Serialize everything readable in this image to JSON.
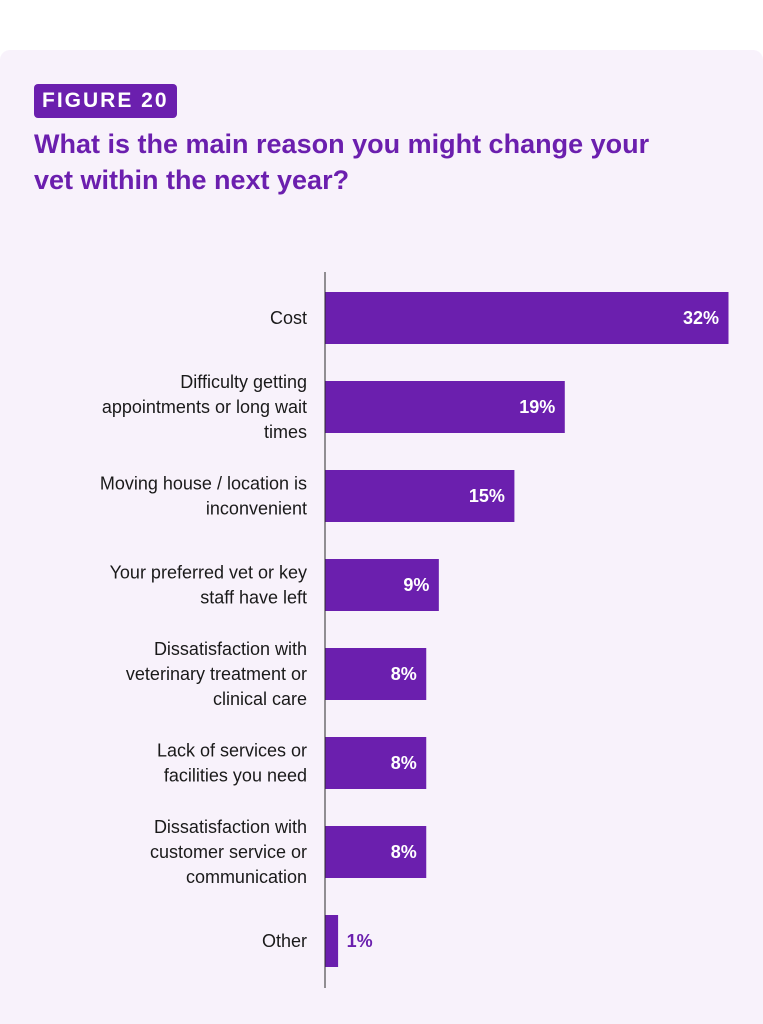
{
  "figure": {
    "badge": "FIGURE 20",
    "title": "What is the main reason you might change your vet within the next year?"
  },
  "colors": {
    "bar": "#6b1fae",
    "background": "#f8f2fb",
    "label_inside": "#ffffff",
    "label_outside": "#6b1fae"
  },
  "chart_data": {
    "type": "bar",
    "orientation": "horizontal",
    "categories": [
      "Cost",
      "Difficulty getting appointments or long wait times",
      "Moving house / location is inconvenient",
      "Your preferred vet or key staff have left",
      "Dissatisfaction with veterinary treatment or clinical care",
      "Lack of services or facilities you need",
      "Dissatisfaction with customer service or communication",
      "Other"
    ],
    "category_lines": [
      [
        "Cost"
      ],
      [
        "Difficulty getting",
        "appointments or long wait",
        "times"
      ],
      [
        "Moving house / location is",
        "inconvenient"
      ],
      [
        "Your preferred vet or key",
        "staff have left"
      ],
      [
        "Dissatisfaction with",
        "veterinary treatment or",
        "clinical care"
      ],
      [
        "Lack of services or",
        "facilities you need"
      ],
      [
        "Dissatisfaction with",
        "customer service or",
        "communication"
      ],
      [
        "Other"
      ]
    ],
    "values": [
      32,
      19,
      15,
      9,
      8,
      8,
      8,
      1
    ],
    "value_labels": [
      "32%",
      "19%",
      "15%",
      "9%",
      "8%",
      "8%",
      "8%",
      "1%"
    ],
    "unit": "%",
    "xlim": [
      0,
      32
    ],
    "grid": false,
    "legend": "none"
  }
}
